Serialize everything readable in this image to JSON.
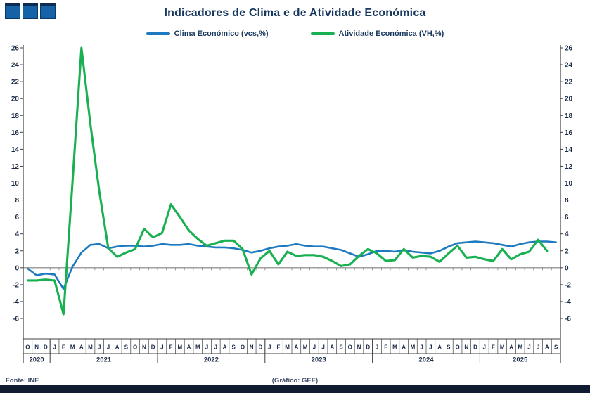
{
  "logo": {
    "name": "three-squares-logo",
    "square_color": "#1563A6",
    "square_top_color": "#0B2C51"
  },
  "footer": {
    "source": "Fonte: INE",
    "credit": "(Gráfico: GEE)",
    "bar_color": "#0F1B31"
  },
  "chart_data": {
    "type": "line",
    "title": "Indicadores de Clima e de Atividade Económica",
    "xlabel": "",
    "ylabel": "",
    "ylim": [
      -6,
      26
    ],
    "ytick_step": 2,
    "grid": "zero-line-only",
    "legend_position": "top",
    "colors": {
      "axis": "#404040",
      "zero_line": "#808080",
      "text": "#1A2B49"
    },
    "categories": [
      "O",
      "N",
      "D",
      "J",
      "F",
      "M",
      "A",
      "M",
      "J",
      "J",
      "A",
      "S",
      "O",
      "N",
      "D",
      "J",
      "F",
      "M",
      "A",
      "M",
      "J",
      "J",
      "A",
      "S",
      "O",
      "N",
      "D",
      "J",
      "F",
      "M",
      "A",
      "M",
      "J",
      "J",
      "A",
      "S",
      "O",
      "N",
      "D",
      "J",
      "F",
      "M",
      "A",
      "M",
      "J",
      "J",
      "A",
      "S",
      "O",
      "N",
      "D",
      "J",
      "F",
      "M",
      "A",
      "M",
      "J",
      "J",
      "A",
      "S"
    ],
    "year_groups": [
      {
        "label": "2020",
        "months": 3
      },
      {
        "label": "2021",
        "months": 12
      },
      {
        "label": "2022",
        "months": 12
      },
      {
        "label": "2023",
        "months": 12
      },
      {
        "label": "2024",
        "months": 12
      },
      {
        "label": "2025",
        "months": 9
      }
    ],
    "series": [
      {
        "name": "Clima Económico (vcs,%)",
        "color": "#1E7AC0",
        "values": [
          -0.1,
          -0.9,
          -0.7,
          -0.8,
          -2.5,
          0.1,
          1.8,
          2.7,
          2.8,
          2.3,
          2.5,
          2.6,
          2.6,
          2.5,
          2.6,
          2.8,
          2.7,
          2.7,
          2.8,
          2.6,
          2.5,
          2.4,
          2.4,
          2.3,
          2.1,
          1.8,
          2.0,
          2.3,
          2.5,
          2.6,
          2.8,
          2.6,
          2.5,
          2.5,
          2.3,
          2.1,
          1.7,
          1.3,
          1.6,
          2.0,
          2.0,
          1.9,
          2.1,
          1.9,
          1.8,
          1.7,
          2.0,
          2.5,
          2.9,
          3.0,
          3.1,
          3.0,
          2.9,
          2.7,
          2.5,
          2.8,
          3.0,
          3.1,
          3.1,
          3.0
        ]
      },
      {
        "name": "Atividade Económica (VH,%)",
        "color": "#18B050",
        "values": [
          -1.5,
          -1.5,
          -1.4,
          -1.5,
          -5.5,
          10.0,
          26.0,
          17.0,
          9.0,
          2.3,
          1.3,
          1.8,
          2.2,
          4.6,
          3.6,
          4.1,
          7.5,
          6.0,
          4.4,
          3.4,
          2.6,
          2.9,
          3.2,
          3.2,
          2.2,
          -0.8,
          1.1,
          2.0,
          0.4,
          1.9,
          1.4,
          1.5,
          1.5,
          1.3,
          0.8,
          0.2,
          0.4,
          1.4,
          2.2,
          1.7,
          0.8,
          0.9,
          2.2,
          1.2,
          1.4,
          1.3,
          0.7,
          1.7,
          2.6,
          1.2,
          1.3,
          1.0,
          0.8,
          2.2,
          1.0,
          1.6,
          1.9,
          3.3,
          2.0,
          null
        ]
      }
    ]
  }
}
